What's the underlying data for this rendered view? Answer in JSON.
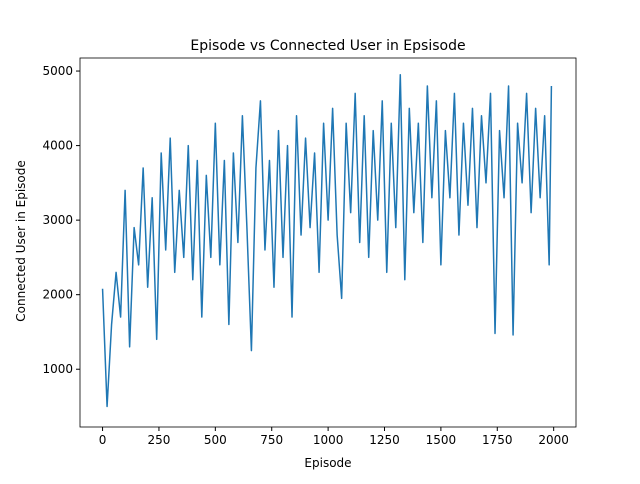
{
  "chart_data": {
    "type": "line",
    "title": "Episode vs Connected User in Epsisode",
    "x_label": "Episode",
    "y_label": "Connected User in Episode",
    "xlim": [
      -100,
      2099
    ],
    "ylim": [
      225,
      5175
    ],
    "xticks": [
      0,
      250,
      500,
      750,
      1000,
      1250,
      1500,
      1750,
      2000
    ],
    "yticks": [
      1000,
      2000,
      3000,
      4000,
      5000
    ],
    "grid": false,
    "series": [
      {
        "name": "Connected User",
        "color": "#1f77b4",
        "x": [
          0,
          20,
          40,
          60,
          80,
          100,
          120,
          140,
          160,
          180,
          200,
          220,
          240,
          260,
          280,
          300,
          320,
          340,
          360,
          380,
          400,
          420,
          440,
          460,
          480,
          500,
          520,
          540,
          560,
          580,
          600,
          620,
          640,
          660,
          680,
          700,
          720,
          740,
          760,
          780,
          800,
          820,
          840,
          860,
          880,
          900,
          920,
          940,
          960,
          980,
          1000,
          1020,
          1040,
          1060,
          1080,
          1100,
          1120,
          1140,
          1160,
          1180,
          1200,
          1220,
          1240,
          1260,
          1280,
          1300,
          1320,
          1340,
          1360,
          1380,
          1400,
          1420,
          1440,
          1460,
          1480,
          1500,
          1520,
          1540,
          1560,
          1580,
          1600,
          1620,
          1640,
          1660,
          1680,
          1700,
          1720,
          1740,
          1760,
          1780,
          1800,
          1820,
          1840,
          1860,
          1880,
          1900,
          1920,
          1940,
          1960,
          1980,
          1990
        ],
        "values": [
          2080,
          500,
          1600,
          2300,
          1700,
          3400,
          1300,
          2900,
          2400,
          3700,
          2100,
          3300,
          1400,
          3900,
          2600,
          4100,
          2300,
          3400,
          2500,
          4000,
          2200,
          3800,
          1700,
          3600,
          2500,
          4300,
          2400,
          3800,
          1600,
          3900,
          2700,
          4400,
          2900,
          1250,
          3700,
          4600,
          2600,
          3800,
          2100,
          4200,
          2500,
          4000,
          1700,
          4400,
          2800,
          4100,
          2900,
          3900,
          2300,
          4300,
          3000,
          4500,
          2800,
          1950,
          4300,
          3100,
          4700,
          2700,
          4400,
          2500,
          4200,
          3000,
          4600,
          2300,
          4300,
          2900,
          4950,
          2200,
          4500,
          3100,
          4300,
          2700,
          4800,
          3300,
          4600,
          2400,
          4200,
          3300,
          4700,
          2800,
          4300,
          3200,
          4500,
          2900,
          4400,
          3500,
          4700,
          1480,
          4200,
          3300,
          4800,
          1460,
          4300,
          3500,
          4700,
          3100,
          4500,
          3300,
          4400,
          2400,
          4800
        ]
      }
    ]
  }
}
